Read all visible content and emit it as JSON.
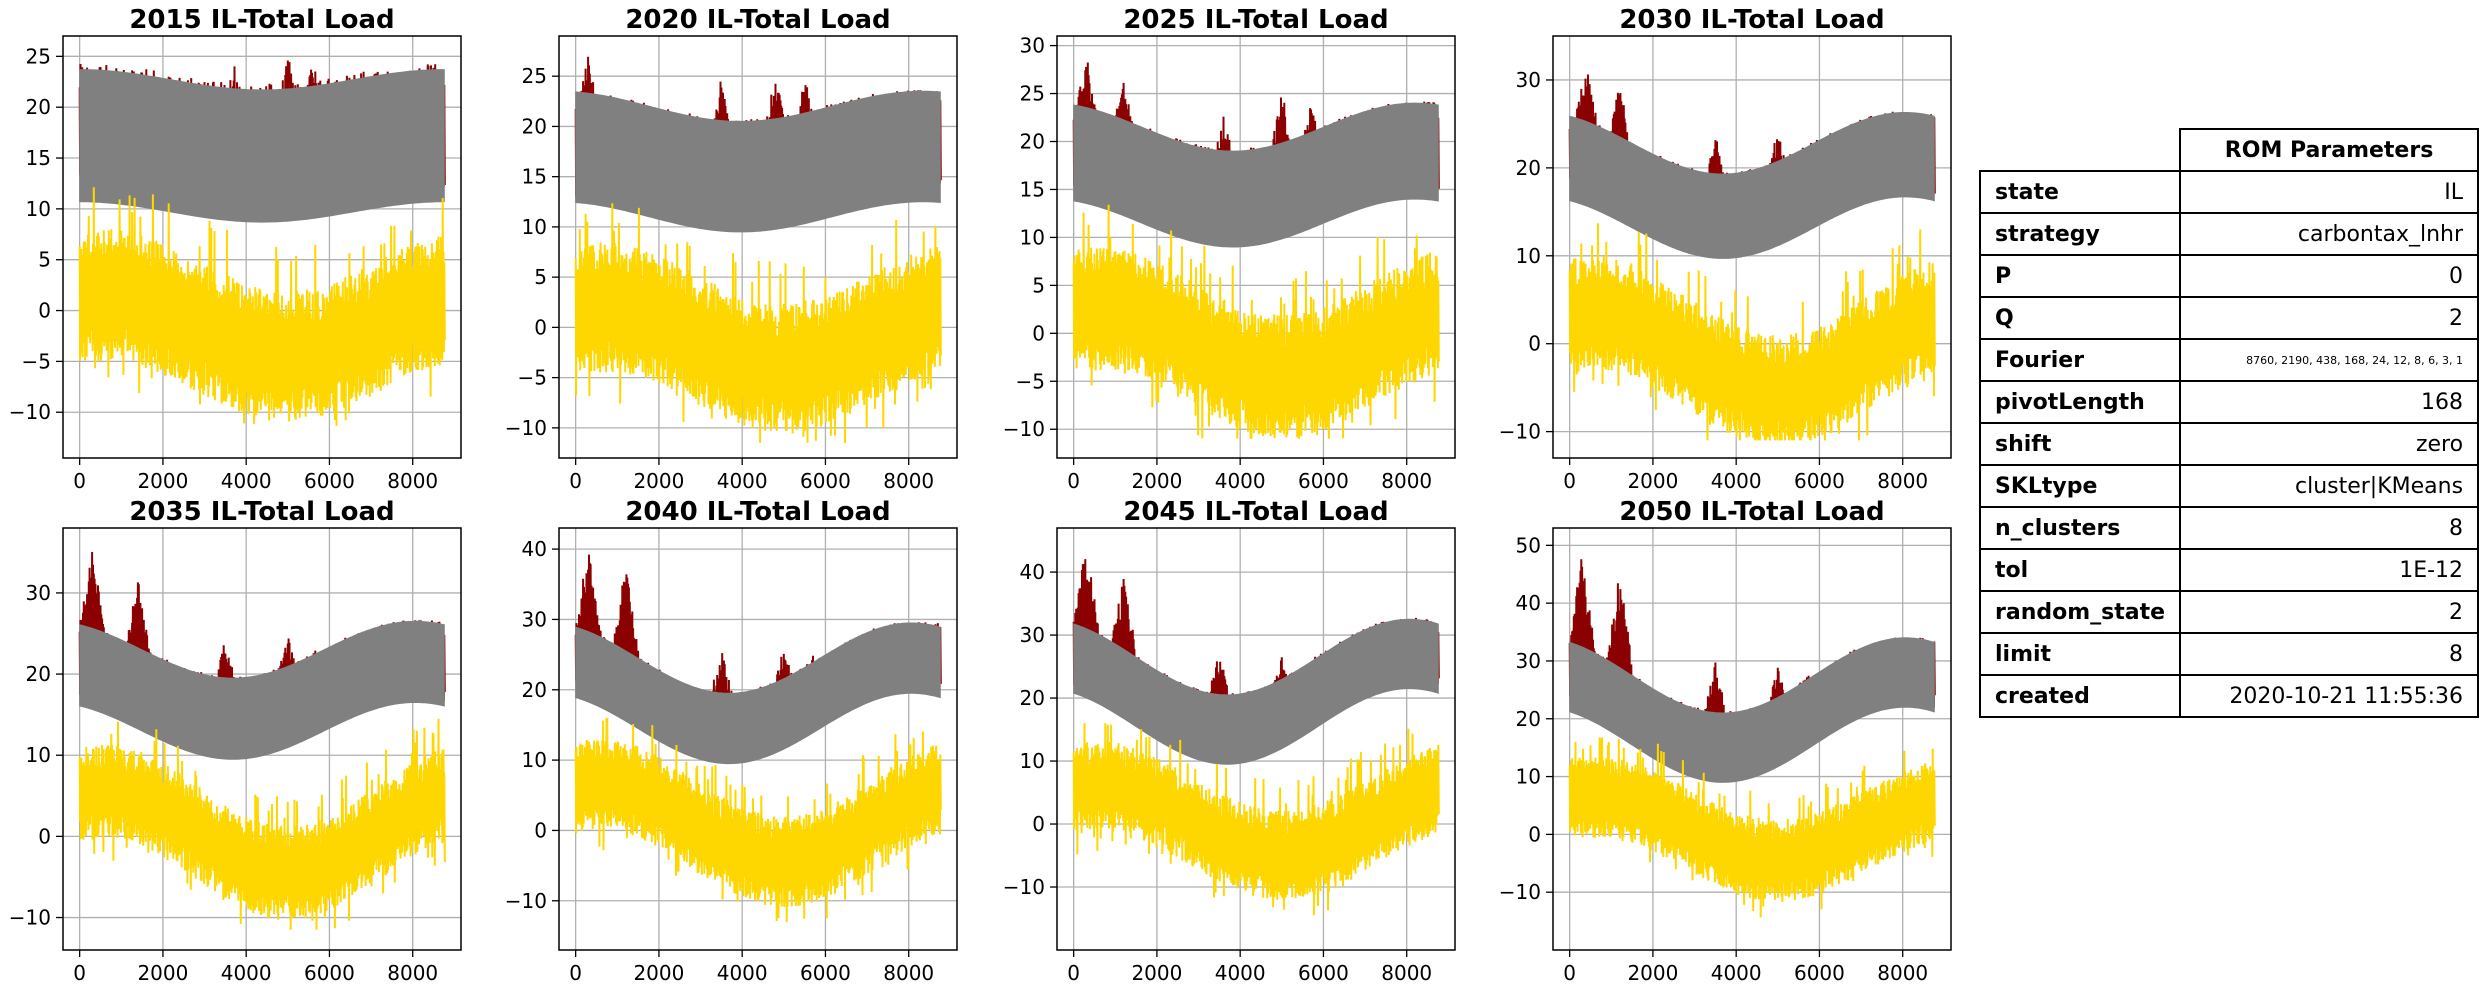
{
  "colors": {
    "original": "#8b0000",
    "fourier": "#808080",
    "residual": "#ffd700",
    "grid": "#b0b0b0"
  },
  "chart_data": [
    {
      "type": "line",
      "title": "2015 IL-Total Load",
      "xlim": [
        -400,
        9160
      ],
      "ylim": [
        -14.5,
        27
      ],
      "xticks": [
        "0",
        "2000",
        "4000",
        "6000",
        "8000"
      ],
      "yticks": [
        "-10",
        "-5",
        "0",
        "5",
        "10",
        "15",
        "20",
        "25"
      ],
      "series": [
        {
          "name": "original",
          "mean": 16.5,
          "amp": 1.0,
          "phase": 0.0,
          "half_width": 6.5,
          "peaks": [
            [
              500,
              24.5
            ],
            [
              1500,
              23.5
            ],
            [
              3700,
              24.5
            ],
            [
              5000,
              25.3
            ],
            [
              5600,
              24.8
            ],
            [
              6200,
              22.8
            ],
            [
              8000,
              20.5
            ]
          ]
        },
        {
          "name": "fourier",
          "mean": 16.2,
          "amp": 1.0,
          "phase": 0.0,
          "half_width": 6.5
        },
        {
          "name": "residual",
          "base": -1.5,
          "amp": 3.0,
          "noise": 5.0,
          "min": -12.0,
          "max": 17.5
        }
      ]
    },
    {
      "type": "line",
      "title": "2020 IL-Total Load",
      "xlim": [
        -400,
        9160
      ],
      "ylim": [
        -13,
        29
      ],
      "xticks": [
        "0",
        "2000",
        "4000",
        "6000",
        "8000"
      ],
      "yticks": [
        "-10",
        "-5",
        "0",
        "5",
        "10",
        "15",
        "20",
        "25"
      ],
      "series": [
        {
          "name": "original",
          "mean": 16.5,
          "amp": 1.5,
          "phase": 0.3,
          "half_width": 5.5,
          "peaks": [
            [
              300,
              27
            ],
            [
              1300,
              24
            ],
            [
              3500,
              25
            ],
            [
              4800,
              26
            ],
            [
              5500,
              25.5
            ],
            [
              6200,
              23
            ],
            [
              8600,
              21
            ]
          ]
        },
        {
          "name": "fourier",
          "mean": 16.5,
          "amp": 1.5,
          "phase": 0.3,
          "half_width": 5.5
        },
        {
          "name": "residual",
          "base": -1.0,
          "amp": 3.0,
          "noise": 5.0,
          "min": -11.5,
          "max": 17.0
        }
      ]
    },
    {
      "type": "line",
      "title": "2025 IL-Total Load",
      "xlim": [
        -400,
        9160
      ],
      "ylim": [
        -13,
        31
      ],
      "xticks": [
        "0",
        "2000",
        "4000",
        "6000",
        "8000"
      ],
      "yticks": [
        "-10",
        "-5",
        "0",
        "5",
        "10",
        "15",
        "20",
        "25",
        "30"
      ],
      "series": [
        {
          "name": "original",
          "mean": 16.5,
          "amp": 2.5,
          "phase": 0.4,
          "half_width": 5.0,
          "peaks": [
            [
              300,
              29.3
            ],
            [
              1200,
              27
            ],
            [
              3600,
              23
            ],
            [
              5000,
              25.5
            ],
            [
              5700,
              24
            ],
            [
              6200,
              21
            ],
            [
              8700,
              20
            ]
          ]
        },
        {
          "name": "fourier",
          "mean": 16.5,
          "amp": 2.5,
          "phase": 0.4,
          "half_width": 5.0
        },
        {
          "name": "residual",
          "base": -1.0,
          "amp": 3.5,
          "noise": 5.0,
          "min": -11.0,
          "max": 18.0
        }
      ]
    },
    {
      "type": "line",
      "title": "2030 IL-Total Load",
      "xlim": [
        -400,
        9160
      ],
      "ylim": [
        -13,
        35
      ],
      "xticks": [
        "0",
        "2000",
        "4000",
        "6000",
        "8000"
      ],
      "yticks": [
        "-10",
        "0",
        "10",
        "20",
        "30"
      ],
      "series": [
        {
          "name": "original",
          "mean": 18.0,
          "amp": 3.5,
          "phase": 0.5,
          "half_width": 4.8,
          "peaks": [
            [
              400,
              32.5
            ],
            [
              1200,
              30
            ],
            [
              3500,
              24
            ],
            [
              5000,
              24.5
            ],
            [
              5800,
              23
            ],
            [
              6300,
              21.5
            ],
            [
              8700,
              24
            ]
          ]
        },
        {
          "name": "fourier",
          "mean": 18.0,
          "amp": 3.5,
          "phase": 0.5,
          "half_width": 4.8
        },
        {
          "name": "residual",
          "base": -1.0,
          "amp": 4.5,
          "noise": 5.0,
          "min": -11.0,
          "max": 19.0
        }
      ]
    },
    {
      "type": "line",
      "title": "2035 IL-Total Load",
      "xlim": [
        -400,
        9160
      ],
      "ylim": [
        -14,
        38
      ],
      "xticks": [
        "0",
        "2000",
        "4000",
        "6000",
        "8000"
      ],
      "yticks": [
        "-10",
        "0",
        "10",
        "20",
        "30"
      ],
      "series": [
        {
          "name": "original",
          "mean": 18.0,
          "amp": 3.5,
          "phase": 0.5,
          "half_width": 5.0,
          "peaks": [
            [
              300,
              36
            ],
            [
              1400,
              32
            ],
            [
              3500,
              25
            ],
            [
              5000,
              25
            ],
            [
              5700,
              24
            ],
            [
              6300,
              21
            ],
            [
              8700,
              26
            ]
          ]
        },
        {
          "name": "fourier",
          "mean": 18.0,
          "amp": 3.5,
          "phase": 0.5,
          "half_width": 5.0
        },
        {
          "name": "residual",
          "base": 0.5,
          "amp": 5.0,
          "noise": 4.5,
          "min": -11.5,
          "max": 14.5
        }
      ]
    },
    {
      "type": "line",
      "title": "2040 IL-Total Load",
      "xlim": [
        -400,
        9160
      ],
      "ylim": [
        -17,
        43
      ],
      "xticks": [
        "0",
        "2000",
        "4000",
        "6000",
        "8000"
      ],
      "yticks": [
        "-10",
        "0",
        "10",
        "20",
        "30",
        "40"
      ],
      "series": [
        {
          "name": "original",
          "mean": 19.5,
          "amp": 5.0,
          "phase": 0.5,
          "half_width": 5.0,
          "peaks": [
            [
              300,
              40.5
            ],
            [
              1200,
              38
            ],
            [
              3500,
              26
            ],
            [
              5000,
              26
            ],
            [
              5700,
              25
            ],
            [
              6300,
              24
            ],
            [
              8700,
              29.5
            ]
          ]
        },
        {
          "name": "fourier",
          "mean": 19.5,
          "amp": 5.0,
          "phase": 0.5,
          "half_width": 5.0
        },
        {
          "name": "residual",
          "base": 1.0,
          "amp": 5.5,
          "noise": 5.0,
          "min": -14.0,
          "max": 16.0
        }
      ]
    },
    {
      "type": "line",
      "title": "2045 IL-Total Load",
      "xlim": [
        -400,
        9160
      ],
      "ylim": [
        -20,
        47
      ],
      "xticks": [
        "0",
        "2000",
        "4000",
        "6000",
        "8000"
      ],
      "yticks": [
        "-10",
        "0",
        "10",
        "20",
        "30",
        "40"
      ],
      "series": [
        {
          "name": "original",
          "mean": 21.0,
          "amp": 6.0,
          "phase": 0.5,
          "half_width": 5.5,
          "peaks": [
            [
              300,
              45
            ],
            [
              1200,
              40
            ],
            [
              3500,
              28
            ],
            [
              5000,
              27
            ],
            [
              5800,
              27
            ],
            [
              6300,
              25
            ],
            [
              8700,
              32
            ]
          ]
        },
        {
          "name": "fourier",
          "mean": 21.0,
          "amp": 6.0,
          "phase": 0.5,
          "half_width": 5.5
        },
        {
          "name": "residual",
          "base": 0.5,
          "amp": 5.5,
          "noise": 5.5,
          "min": -16.0,
          "max": 16.0
        }
      ]
    },
    {
      "type": "line",
      "title": "2050 IL-Total Load",
      "xlim": [
        -400,
        9160
      ],
      "ylim": [
        -20,
        53
      ],
      "xticks": [
        "0",
        "2000",
        "4000",
        "6000",
        "8000"
      ],
      "yticks": [
        "-10",
        "0",
        "10",
        "20",
        "30",
        "40",
        "50"
      ],
      "series": [
        {
          "name": "original",
          "mean": 21.5,
          "amp": 6.5,
          "phase": 0.5,
          "half_width": 6.0,
          "peaks": [
            [
              300,
              49
            ],
            [
              1200,
              46
            ],
            [
              3500,
              30
            ],
            [
              5000,
              29
            ],
            [
              5700,
              29
            ],
            [
              6300,
              27
            ],
            [
              8700,
              33.5
            ]
          ]
        },
        {
          "name": "fourier",
          "mean": 21.5,
          "amp": 6.5,
          "phase": 0.5,
          "half_width": 6.0
        },
        {
          "name": "residual",
          "base": 1.0,
          "amp": 5.5,
          "noise": 5.5,
          "min": -16.0,
          "max": 19.0
        }
      ]
    }
  ],
  "rom_table": {
    "header": "ROM Parameters",
    "rows": [
      {
        "key": "state",
        "value": "IL"
      },
      {
        "key": "strategy",
        "value": "carbontax_lnhr"
      },
      {
        "key": "P",
        "value": "0"
      },
      {
        "key": "Q",
        "value": "2"
      },
      {
        "key": "Fourier",
        "value": "8760, 2190, 438, 168, 24, 12, 8, 6, 3, 1"
      },
      {
        "key": "pivotLength",
        "value": "168"
      },
      {
        "key": "shift",
        "value": "zero"
      },
      {
        "key": "SKLtype",
        "value": "cluster|KMeans"
      },
      {
        "key": "n_clusters",
        "value": "8"
      },
      {
        "key": "tol",
        "value": "1E-12"
      },
      {
        "key": "random_state",
        "value": "2"
      },
      {
        "key": "limit",
        "value": "8"
      },
      {
        "key": "created",
        "value": "2020-10-21 11:55:36"
      }
    ]
  }
}
